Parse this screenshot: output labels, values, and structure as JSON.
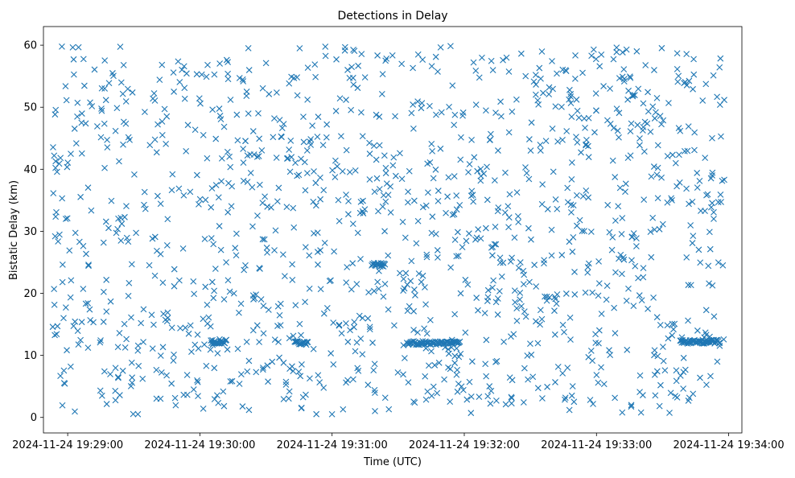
{
  "chart_data": {
    "type": "scatter",
    "title": "Detections in Delay",
    "xlabel": "Time (UTC)",
    "ylabel": "Bistatic Delay (km)",
    "marker": "x",
    "color": "#1f77b4",
    "grid": false,
    "legend": "none",
    "xlim": [
      "2024-11-24 19:28:49",
      "2024-11-24 19:34:06"
    ],
    "ylim": [
      -2.5,
      63
    ],
    "xticks": [
      "2024-11-24 19:29:00",
      "2024-11-24 19:30:00",
      "2024-11-24 19:31:00",
      "2024-11-24 19:32:00",
      "2024-11-24 19:33:00",
      "2024-11-24 19:34:00"
    ],
    "yticks": [
      "0",
      "10",
      "20",
      "30",
      "40",
      "50",
      "60"
    ],
    "x_start": "2024-11-24 19:28:53",
    "x_end": "2024-11-24 19:33:58",
    "point_count_estimate": 1500,
    "tracks": [
      {
        "from": "2024-11-24 19:30:05",
        "to": "2024-11-24 19:30:12",
        "delay_km": 12.2
      },
      {
        "from": "2024-11-24 19:30:43",
        "to": "2024-11-24 19:30:49",
        "delay_km": 12.0
      },
      {
        "from": "2024-11-24 19:31:18",
        "to": "2024-11-24 19:31:24",
        "delay_km": 24.6
      },
      {
        "from": "2024-11-24 19:31:34",
        "to": "2024-11-24 19:31:58",
        "delay_km": 12.0
      },
      {
        "from": "2024-11-24 19:33:38",
        "to": "2024-11-24 19:33:56",
        "delay_km": 12.2
      }
    ]
  }
}
